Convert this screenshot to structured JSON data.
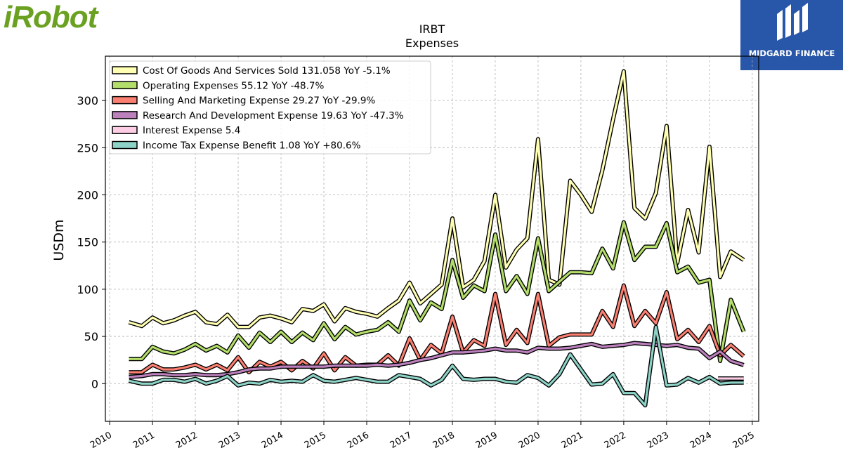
{
  "logos": {
    "left_text": "iRobot",
    "left_color": "#6aa121",
    "right_text": "MIDGARD FINANCE",
    "right_bg": "#2856a8"
  },
  "chart_data": {
    "type": "line",
    "title": "IRBT",
    "subtitle": "Expenses",
    "ylabel": "USDm",
    "xlabel": "",
    "xlim": [
      2009.9,
      2025.15
    ],
    "ylim": [
      -40,
      347
    ],
    "yticks": [
      0,
      50,
      100,
      150,
      200,
      250,
      300
    ],
    "xticks": [
      2010,
      2011,
      2012,
      2013,
      2014,
      2015,
      2016,
      2017,
      2018,
      2019,
      2020,
      2021,
      2022,
      2023,
      2024,
      2025
    ],
    "grid": true,
    "legend_position": "top-left",
    "series": [
      {
        "name": "Cost Of Goods And Services Sold",
        "legend_label": "Cost Of Goods And Services Sold  131.058 YoY -5.1%",
        "color": "#ffffb3",
        "points": [
          [
            2010.45,
            65
          ],
          [
            2010.75,
            61
          ],
          [
            2011.0,
            70
          ],
          [
            2011.25,
            64
          ],
          [
            2011.5,
            67
          ],
          [
            2011.75,
            72
          ],
          [
            2012.0,
            76
          ],
          [
            2012.25,
            65
          ],
          [
            2012.5,
            63
          ],
          [
            2012.75,
            73
          ],
          [
            2013.0,
            60
          ],
          [
            2013.25,
            60
          ],
          [
            2013.5,
            70
          ],
          [
            2013.75,
            72
          ],
          [
            2014.0,
            69
          ],
          [
            2014.25,
            65
          ],
          [
            2014.5,
            79
          ],
          [
            2014.75,
            77
          ],
          [
            2015.0,
            84
          ],
          [
            2015.25,
            66
          ],
          [
            2015.5,
            80
          ],
          [
            2015.75,
            76
          ],
          [
            2016.0,
            74
          ],
          [
            2016.25,
            71
          ],
          [
            2016.5,
            80
          ],
          [
            2016.75,
            88
          ],
          [
            2017.0,
            107
          ],
          [
            2017.25,
            85
          ],
          [
            2017.5,
            95
          ],
          [
            2017.75,
            105
          ],
          [
            2018.0,
            175
          ],
          [
            2018.25,
            102
          ],
          [
            2018.5,
            110
          ],
          [
            2018.75,
            130
          ],
          [
            2019.0,
            200
          ],
          [
            2019.25,
            123
          ],
          [
            2019.5,
            142
          ],
          [
            2019.75,
            154
          ],
          [
            2020.0,
            259
          ],
          [
            2020.25,
            110
          ],
          [
            2020.5,
            105
          ],
          [
            2020.75,
            215
          ],
          [
            2021.0,
            200
          ],
          [
            2021.25,
            182
          ],
          [
            2021.5,
            226
          ],
          [
            2021.75,
            280
          ],
          [
            2022.0,
            331
          ],
          [
            2022.25,
            186
          ],
          [
            2022.5,
            175
          ],
          [
            2022.75,
            202
          ],
          [
            2023.0,
            273
          ],
          [
            2023.25,
            128
          ],
          [
            2023.5,
            184
          ],
          [
            2023.75,
            139
          ],
          [
            2024.0,
            251
          ],
          [
            2024.25,
            113
          ],
          [
            2024.5,
            140
          ],
          [
            2024.8,
            131
          ]
        ]
      },
      {
        "name": "Operating Expenses",
        "legend_label": "Operating Expenses  55.12 YoY -48.7%",
        "color": "#b3de69",
        "points": [
          [
            2010.45,
            26
          ],
          [
            2010.75,
            26
          ],
          [
            2011.0,
            39
          ],
          [
            2011.25,
            34
          ],
          [
            2011.5,
            32
          ],
          [
            2011.75,
            36
          ],
          [
            2012.0,
            42
          ],
          [
            2012.25,
            35
          ],
          [
            2012.5,
            40
          ],
          [
            2012.75,
            33
          ],
          [
            2013.0,
            51
          ],
          [
            2013.25,
            38
          ],
          [
            2013.5,
            54
          ],
          [
            2013.75,
            44
          ],
          [
            2014.0,
            55
          ],
          [
            2014.25,
            44
          ],
          [
            2014.5,
            54
          ],
          [
            2014.75,
            46
          ],
          [
            2015.0,
            64
          ],
          [
            2015.25,
            47
          ],
          [
            2015.5,
            60
          ],
          [
            2015.75,
            52
          ],
          [
            2016.0,
            55
          ],
          [
            2016.25,
            57
          ],
          [
            2016.5,
            65
          ],
          [
            2016.75,
            55
          ],
          [
            2017.0,
            88
          ],
          [
            2017.25,
            67
          ],
          [
            2017.5,
            86
          ],
          [
            2017.75,
            79
          ],
          [
            2018.0,
            131
          ],
          [
            2018.25,
            91
          ],
          [
            2018.5,
            104
          ],
          [
            2018.75,
            98
          ],
          [
            2019.0,
            158
          ],
          [
            2019.25,
            98
          ],
          [
            2019.5,
            114
          ],
          [
            2019.75,
            95
          ],
          [
            2020.0,
            154
          ],
          [
            2020.25,
            98
          ],
          [
            2020.5,
            108
          ],
          [
            2020.75,
            118
          ],
          [
            2021.0,
            118
          ],
          [
            2021.25,
            117
          ],
          [
            2021.5,
            143
          ],
          [
            2021.75,
            122
          ],
          [
            2022.0,
            171
          ],
          [
            2022.25,
            131
          ],
          [
            2022.5,
            145
          ],
          [
            2022.75,
            145
          ],
          [
            2023.0,
            170
          ],
          [
            2023.25,
            118
          ],
          [
            2023.5,
            124
          ],
          [
            2023.75,
            107
          ],
          [
            2024.0,
            110
          ],
          [
            2024.25,
            24
          ],
          [
            2024.5,
            89
          ],
          [
            2024.8,
            55
          ]
        ]
      },
      {
        "name": "Selling And Marketing Expense",
        "legend_label": "Selling And Marketing Expense  29.27 YoY -29.9%",
        "color": "#fb8072",
        "points": [
          [
            2010.45,
            12
          ],
          [
            2010.75,
            12
          ],
          [
            2011.0,
            20
          ],
          [
            2011.25,
            15
          ],
          [
            2011.5,
            15
          ],
          [
            2011.75,
            17
          ],
          [
            2012.0,
            20
          ],
          [
            2012.25,
            15
          ],
          [
            2012.5,
            20
          ],
          [
            2012.75,
            14
          ],
          [
            2013.0,
            28
          ],
          [
            2013.25,
            12
          ],
          [
            2013.5,
            23
          ],
          [
            2013.75,
            18
          ],
          [
            2014.0,
            23
          ],
          [
            2014.25,
            14
          ],
          [
            2014.5,
            24
          ],
          [
            2014.75,
            16
          ],
          [
            2015.0,
            32
          ],
          [
            2015.25,
            14
          ],
          [
            2015.5,
            28
          ],
          [
            2015.75,
            19
          ],
          [
            2016.0,
            20
          ],
          [
            2016.25,
            20
          ],
          [
            2016.5,
            30
          ],
          [
            2016.75,
            19
          ],
          [
            2017.0,
            48
          ],
          [
            2017.25,
            25
          ],
          [
            2017.5,
            41
          ],
          [
            2017.75,
            32
          ],
          [
            2018.0,
            71
          ],
          [
            2018.25,
            33
          ],
          [
            2018.5,
            46
          ],
          [
            2018.75,
            40
          ],
          [
            2019.0,
            95
          ],
          [
            2019.25,
            41
          ],
          [
            2019.5,
            57
          ],
          [
            2019.75,
            43
          ],
          [
            2020.0,
            95
          ],
          [
            2020.25,
            40
          ],
          [
            2020.5,
            49
          ],
          [
            2020.75,
            52
          ],
          [
            2021.0,
            52
          ],
          [
            2021.25,
            52
          ],
          [
            2021.5,
            77
          ],
          [
            2021.75,
            60
          ],
          [
            2022.0,
            104
          ],
          [
            2022.25,
            61
          ],
          [
            2022.5,
            77
          ],
          [
            2022.75,
            64
          ],
          [
            2023.0,
            97
          ],
          [
            2023.25,
            47
          ],
          [
            2023.5,
            57
          ],
          [
            2023.75,
            44
          ],
          [
            2024.0,
            61
          ],
          [
            2024.25,
            30
          ],
          [
            2024.5,
            41
          ],
          [
            2024.8,
            29
          ]
        ]
      },
      {
        "name": "Research And Development Expense",
        "legend_label": "Research And Development Expense  19.63 YoY -47.3%",
        "color": "#bc80bd",
        "points": [
          [
            2010.45,
            7
          ],
          [
            2010.75,
            8
          ],
          [
            2011.0,
            10
          ],
          [
            2011.25,
            10
          ],
          [
            2011.5,
            9
          ],
          [
            2011.75,
            9
          ],
          [
            2012.0,
            10
          ],
          [
            2012.25,
            9
          ],
          [
            2012.5,
            9
          ],
          [
            2012.75,
            10
          ],
          [
            2013.0,
            12
          ],
          [
            2013.25,
            15
          ],
          [
            2013.5,
            16
          ],
          [
            2013.75,
            16
          ],
          [
            2014.0,
            18
          ],
          [
            2014.25,
            18
          ],
          [
            2014.5,
            18
          ],
          [
            2014.75,
            18
          ],
          [
            2015.0,
            18
          ],
          [
            2015.25,
            19
          ],
          [
            2015.5,
            19
          ],
          [
            2015.75,
            19
          ],
          [
            2016.0,
            19
          ],
          [
            2016.25,
            20
          ],
          [
            2016.5,
            19
          ],
          [
            2016.75,
            20
          ],
          [
            2017.0,
            22
          ],
          [
            2017.25,
            25
          ],
          [
            2017.5,
            27
          ],
          [
            2017.75,
            30
          ],
          [
            2018.0,
            33
          ],
          [
            2018.25,
            33
          ],
          [
            2018.5,
            34
          ],
          [
            2018.75,
            35
          ],
          [
            2019.0,
            37
          ],
          [
            2019.25,
            35
          ],
          [
            2019.5,
            35
          ],
          [
            2019.75,
            33
          ],
          [
            2020.0,
            38
          ],
          [
            2020.25,
            37
          ],
          [
            2020.5,
            37
          ],
          [
            2020.75,
            38
          ],
          [
            2021.0,
            40
          ],
          [
            2021.25,
            42
          ],
          [
            2021.5,
            39
          ],
          [
            2021.75,
            40
          ],
          [
            2022.0,
            41
          ],
          [
            2022.25,
            43
          ],
          [
            2022.5,
            42
          ],
          [
            2022.75,
            41
          ],
          [
            2023.0,
            40
          ],
          [
            2023.25,
            41
          ],
          [
            2023.5,
            38
          ],
          [
            2023.75,
            37
          ],
          [
            2024.0,
            27
          ],
          [
            2024.25,
            34
          ],
          [
            2024.5,
            24
          ],
          [
            2024.8,
            19.6
          ]
        ]
      },
      {
        "name": "Interest Expense",
        "legend_label": "Interest Expense  5.4",
        "color": "#fccde5",
        "points": [
          [
            2024.2,
            5.4
          ],
          [
            2024.8,
            5.4
          ]
        ]
      },
      {
        "name": "Income Tax Expense Benefit",
        "legend_label": "Income Tax Expense Benefit  1.08 YoY +80.6%",
        "color": "#8dd3c7",
        "points": [
          [
            2010.45,
            3
          ],
          [
            2010.75,
            0
          ],
          [
            2011.0,
            0
          ],
          [
            2011.25,
            4
          ],
          [
            2011.5,
            4
          ],
          [
            2011.75,
            2
          ],
          [
            2012.0,
            5
          ],
          [
            2012.25,
            0
          ],
          [
            2012.5,
            3
          ],
          [
            2012.75,
            8
          ],
          [
            2013.0,
            -2
          ],
          [
            2013.25,
            1
          ],
          [
            2013.5,
            0
          ],
          [
            2013.75,
            4
          ],
          [
            2014.0,
            2
          ],
          [
            2014.25,
            3
          ],
          [
            2014.5,
            2
          ],
          [
            2014.75,
            9
          ],
          [
            2015.0,
            3
          ],
          [
            2015.25,
            2
          ],
          [
            2015.5,
            4
          ],
          [
            2015.75,
            6
          ],
          [
            2016.0,
            4
          ],
          [
            2016.25,
            2
          ],
          [
            2016.5,
            2
          ],
          [
            2016.75,
            9
          ],
          [
            2017.0,
            7
          ],
          [
            2017.25,
            5
          ],
          [
            2017.5,
            -2
          ],
          [
            2017.75,
            4
          ],
          [
            2018.0,
            19
          ],
          [
            2018.25,
            5
          ],
          [
            2018.5,
            4
          ],
          [
            2018.75,
            5
          ],
          [
            2019.0,
            5
          ],
          [
            2019.25,
            2
          ],
          [
            2019.5,
            1
          ],
          [
            2019.75,
            9
          ],
          [
            2020.0,
            6
          ],
          [
            2020.25,
            -2
          ],
          [
            2020.5,
            10
          ],
          [
            2020.75,
            31
          ],
          [
            2021.0,
            15
          ],
          [
            2021.25,
            -1
          ],
          [
            2021.5,
            0
          ],
          [
            2021.75,
            10
          ],
          [
            2022.0,
            -10
          ],
          [
            2022.25,
            -10
          ],
          [
            2022.5,
            -23
          ],
          [
            2022.75,
            60
          ],
          [
            2023.0,
            -2
          ],
          [
            2023.25,
            -1
          ],
          [
            2023.5,
            6
          ],
          [
            2023.75,
            1
          ],
          [
            2024.0,
            7
          ],
          [
            2024.25,
            0
          ],
          [
            2024.5,
            1
          ],
          [
            2024.8,
            1.08
          ]
        ]
      }
    ]
  }
}
